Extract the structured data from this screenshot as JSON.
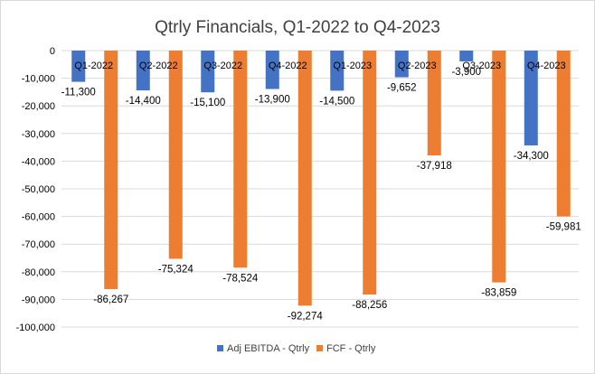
{
  "chart_data": {
    "type": "bar",
    "title": "Qtrly Financials, Q1-2022 to Q4-2023",
    "categories": [
      "Q1-2022",
      "Q2-2022",
      "Q3-2022",
      "Q4-2022",
      "Q1-2023",
      "Q2-2023",
      "Q3-2023",
      "Q4-2023"
    ],
    "series": [
      {
        "name": "Adj EBITDA - Qtrly",
        "color": "#4472c4",
        "values": [
          -11300,
          -14400,
          -15100,
          -13900,
          -14500,
          -9652,
          -3900,
          -34300
        ],
        "labels": [
          "-11,300",
          "-14,400",
          "-15,100",
          "-13,900",
          "-14,500",
          "-9,652",
          "-3,900",
          "-34,300"
        ]
      },
      {
        "name": "FCF - Qtrly",
        "color": "#ed7d31",
        "values": [
          -86267,
          -75324,
          -78524,
          -92274,
          -88256,
          -37918,
          -83859,
          -59981
        ],
        "labels": [
          "-86,267",
          "-75,324",
          "-78,524",
          "-92,274",
          "-88,256",
          "-37,918",
          "-83,859",
          "-59,981"
        ]
      }
    ],
    "ylim": [
      -100000,
      0
    ],
    "yticks": [
      0,
      -10000,
      -20000,
      -30000,
      -40000,
      -50000,
      -60000,
      -70000,
      -80000,
      -90000,
      -100000
    ],
    "ytick_labels": [
      "0",
      "-10,000",
      "-20,000",
      "-30,000",
      "-40,000",
      "-50,000",
      "-60,000",
      "-70,000",
      "-80,000",
      "-90,000",
      "-100,000"
    ],
    "xlabel": "",
    "ylabel": "",
    "grid": true,
    "legend": "bottom"
  }
}
